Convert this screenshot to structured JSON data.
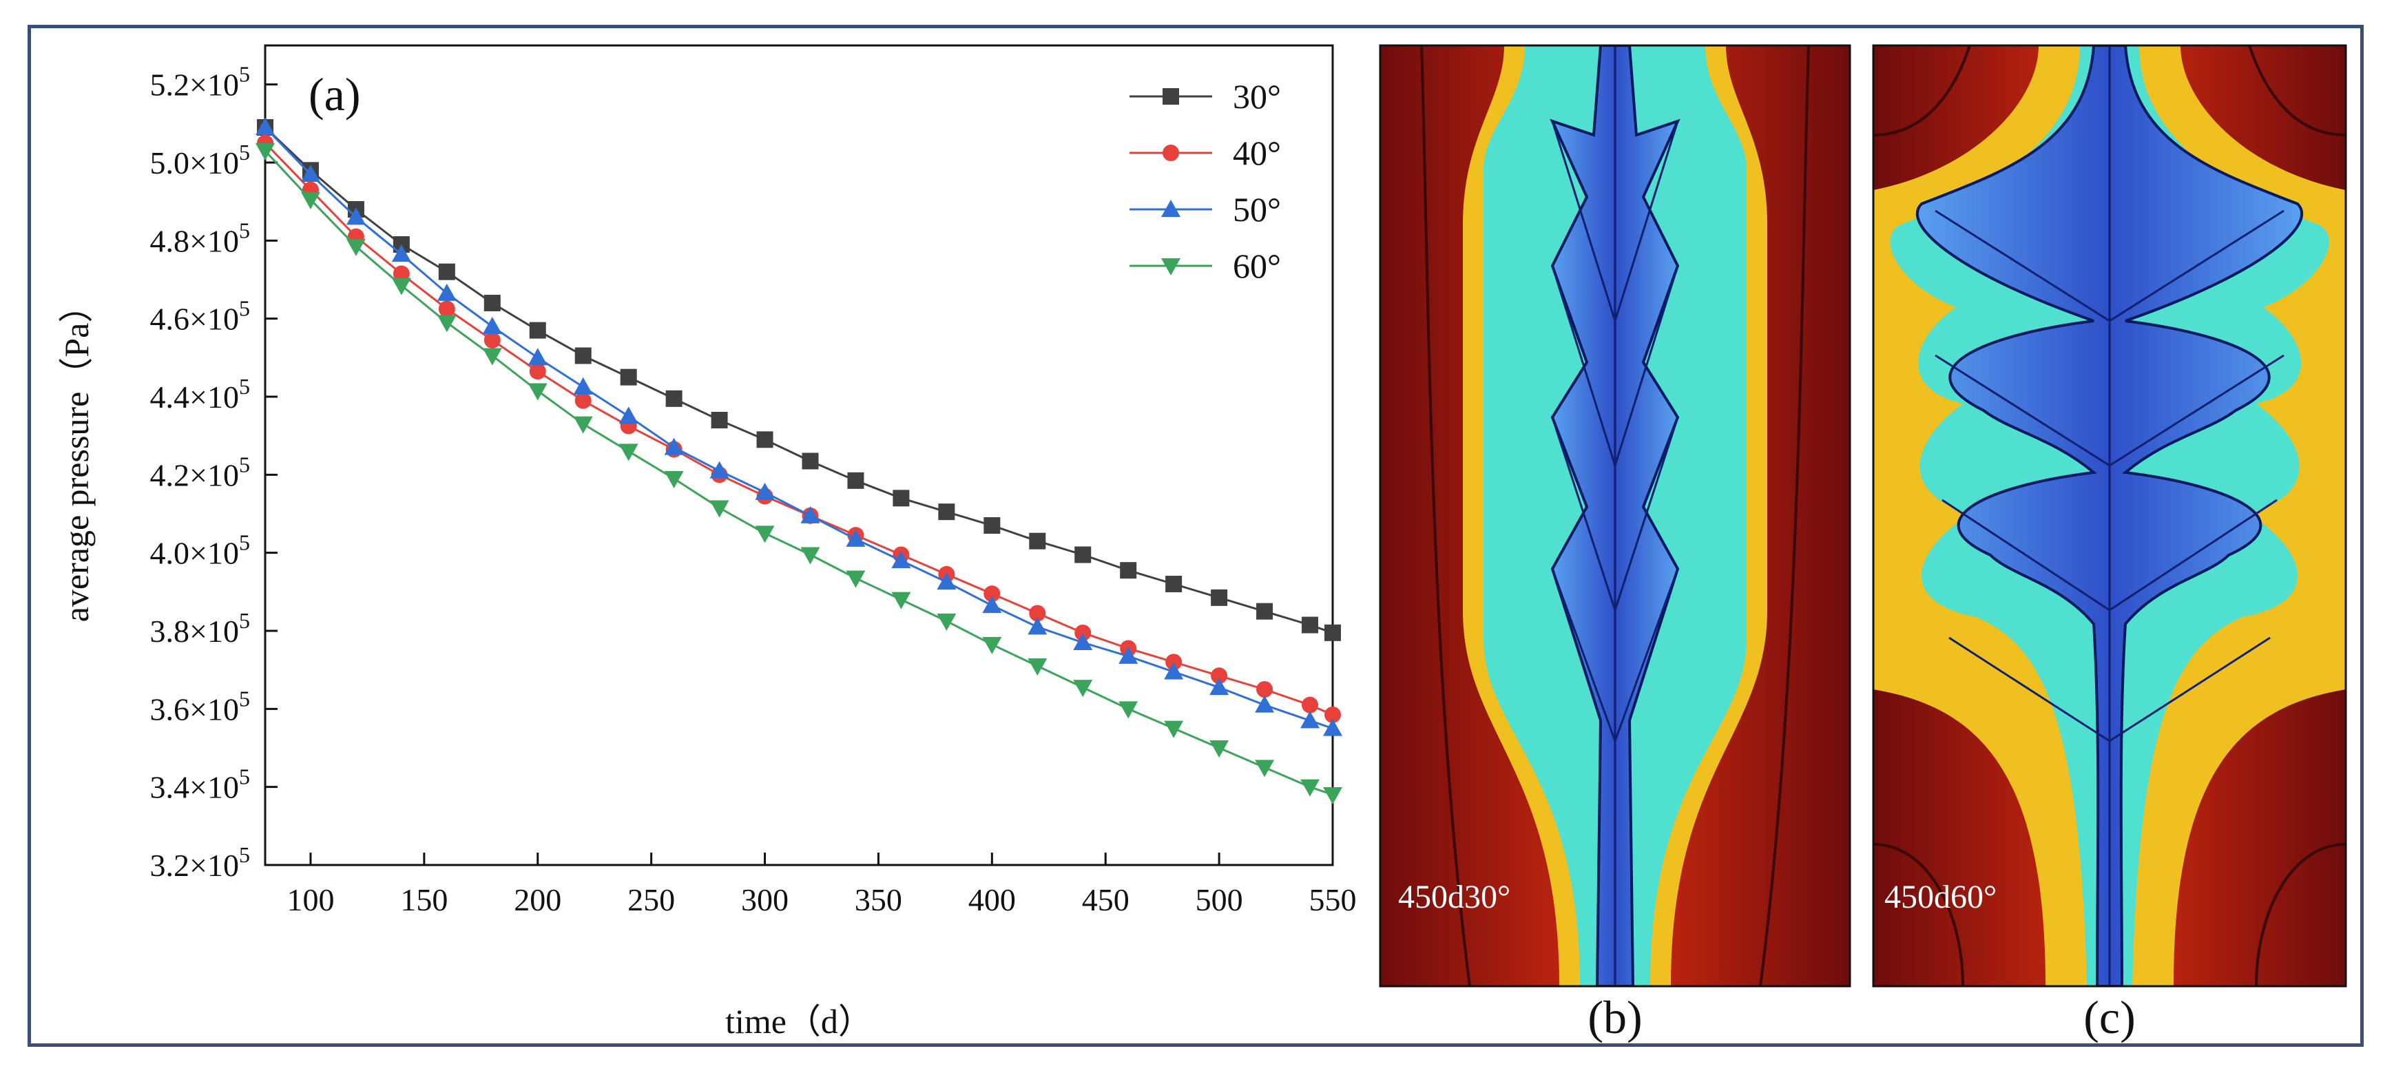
{
  "chart_data": [
    {
      "type": "line",
      "panel_label": "(a)",
      "xlabel": "time（d）",
      "ylabel": "average pressure（Pa）",
      "xlim": [
        80,
        550
      ],
      "ylim": [
        320000,
        530000
      ],
      "xticks": [
        100,
        150,
        200,
        250,
        300,
        350,
        400,
        450,
        500,
        550
      ],
      "yticks": [
        {
          "value": 320000,
          "mantissa": "3.2×10",
          "exp": "5"
        },
        {
          "value": 340000,
          "mantissa": "3.4×10",
          "exp": "5"
        },
        {
          "value": 360000,
          "mantissa": "3.6×10",
          "exp": "5"
        },
        {
          "value": 380000,
          "mantissa": "3.8×10",
          "exp": "5"
        },
        {
          "value": 400000,
          "mantissa": "4.0×10",
          "exp": "5"
        },
        {
          "value": 420000,
          "mantissa": "4.2×10",
          "exp": "5"
        },
        {
          "value": 440000,
          "mantissa": "4.4×10",
          "exp": "5"
        },
        {
          "value": 460000,
          "mantissa": "4.6×10",
          "exp": "5"
        },
        {
          "value": 480000,
          "mantissa": "4.8×10",
          "exp": "5"
        },
        {
          "value": 500000,
          "mantissa": "5.0×10",
          "exp": "5"
        },
        {
          "value": 520000,
          "mantissa": "5.2×10",
          "exp": "5"
        }
      ],
      "legend_position": "top-right",
      "x": [
        80,
        100,
        120,
        140,
        160,
        180,
        200,
        220,
        240,
        260,
        280,
        300,
        320,
        340,
        360,
        380,
        400,
        420,
        440,
        460,
        480,
        500,
        520,
        540,
        550
      ],
      "series": [
        {
          "name": "30°",
          "color": "#404040",
          "marker": "square",
          "values": [
            509000,
            498000,
            488000,
            479000,
            472000,
            464000,
            457000,
            450500,
            445000,
            439500,
            434000,
            429000,
            423500,
            418500,
            414000,
            410500,
            407000,
            403000,
            399500,
            395500,
            392000,
            388500,
            385000,
            381500,
            379500
          ]
        },
        {
          "name": "40°",
          "color": "#e8403a",
          "marker": "circle",
          "values": [
            505000,
            493000,
            481000,
            471500,
            462500,
            454500,
            446500,
            439000,
            432500,
            426500,
            420000,
            414500,
            409500,
            404500,
            399500,
            394500,
            389500,
            384500,
            379500,
            375500,
            372000,
            368500,
            365000,
            361000,
            358500
          ]
        },
        {
          "name": "50°",
          "color": "#2f6fd6",
          "marker": "triangle-up",
          "values": [
            509000,
            497000,
            486000,
            476500,
            466500,
            458000,
            450000,
            442500,
            435000,
            427000,
            421000,
            415500,
            409500,
            403500,
            398000,
            392500,
            386500,
            381000,
            377000,
            373500,
            369500,
            365500,
            361000,
            357000,
            355000
          ]
        },
        {
          "name": "60°",
          "color": "#3aa55a",
          "marker": "triangle-down",
          "values": [
            503000,
            490500,
            478500,
            468500,
            459000,
            450500,
            441500,
            433000,
            426000,
            419000,
            411500,
            405000,
            399500,
            393500,
            388000,
            382500,
            376500,
            371000,
            365500,
            360000,
            355000,
            350000,
            345000,
            340000,
            338000
          ]
        }
      ]
    },
    {
      "type": "heatmap",
      "panel_label": "(b)",
      "annotation": "450d30°"
    },
    {
      "type": "heatmap",
      "panel_label": "(c)",
      "annotation": "450d60°"
    }
  ]
}
